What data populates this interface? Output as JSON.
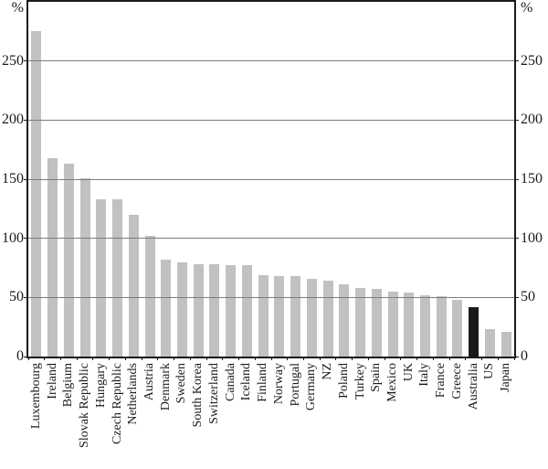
{
  "chart_data": {
    "type": "bar",
    "title": "",
    "axis_label_left": "%",
    "axis_label_right": "%",
    "categories": [
      "Luxembourg",
      "Ireland",
      "Belgium",
      "Slovak Republic",
      "Hungary",
      "Czech Republic",
      "Netherlands",
      "Austria",
      "Denmark",
      "Sweden",
      "South Korea",
      "Switzerland",
      "Canada",
      "Iceland",
      "Finland",
      "Norway",
      "Portugal",
      "Germany",
      "NZ",
      "Poland",
      "Turkey",
      "Spain",
      "Mexico",
      "UK",
      "Italy",
      "France",
      "Greece",
      "Australia",
      "US",
      "Japan"
    ],
    "values": [
      275,
      168,
      163,
      151,
      133,
      133,
      120,
      102,
      82,
      80,
      78,
      78,
      77,
      77,
      69,
      68,
      68,
      66,
      64,
      61,
      58,
      57,
      55,
      54,
      52,
      51,
      48,
      42,
      23,
      21
    ],
    "highlight_category": "Australia",
    "bar_color": "#c1c1c1",
    "highlight_color": "#1a1a1a",
    "frame_color": "#1a1a1a",
    "gridline_color": "#7d7d7d",
    "ylim": [
      0,
      300
    ],
    "yticks": [
      0,
      50,
      100,
      150,
      200,
      250
    ],
    "grid": "horizontal",
    "legend": "none"
  }
}
